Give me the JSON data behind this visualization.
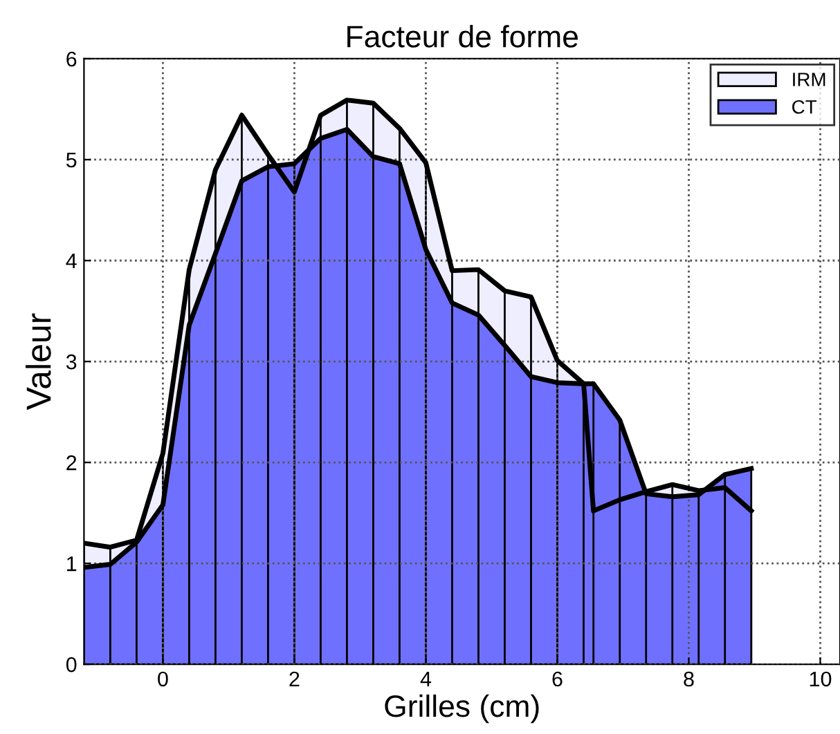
{
  "chart_data": {
    "type": "area",
    "title": "Facteur de forme",
    "xlabel": "Grilles (cm)",
    "ylabel": "Valeur",
    "x": [
      -1.2,
      -0.8,
      -0.4,
      0,
      0.4,
      0.8,
      1.2,
      1.6,
      2.0,
      2.4,
      2.8,
      3.2,
      3.6,
      4.0,
      4.4,
      4.8,
      5.2,
      5.6,
      6.0,
      6.4,
      6.55,
      6.95,
      7.35,
      7.75,
      8.15,
      8.55,
      8.95
    ],
    "series": [
      {
        "name": "IRM",
        "color": "#eeeeff",
        "values": [
          1.2,
          1.16,
          1.23,
          2.09,
          3.91,
          4.9,
          5.44,
          5.05,
          4.68,
          5.44,
          5.59,
          5.56,
          5.31,
          4.97,
          3.9,
          3.91,
          3.7,
          3.64,
          3.01,
          2.78,
          1.52,
          1.63,
          1.71,
          1.78,
          1.72,
          1.75,
          1.52
        ]
      },
      {
        "name": "CT",
        "color": "#7070ff",
        "values": [
          0.96,
          0.99,
          1.21,
          1.58,
          3.36,
          4.07,
          4.79,
          4.93,
          4.96,
          5.21,
          5.3,
          5.03,
          4.96,
          4.11,
          3.58,
          3.46,
          3.16,
          2.85,
          2.79,
          2.78,
          2.78,
          2.42,
          1.69,
          1.66,
          1.68,
          1.88,
          1.94
        ]
      }
    ],
    "xlim": [
      -1.2,
      10.3
    ],
    "ylim": [
      0,
      6
    ],
    "xticks": [
      0,
      2,
      4,
      6,
      8,
      10
    ],
    "yticks": [
      0,
      1,
      2,
      3,
      4,
      5,
      6
    ],
    "grid": true,
    "legend": "top right"
  }
}
